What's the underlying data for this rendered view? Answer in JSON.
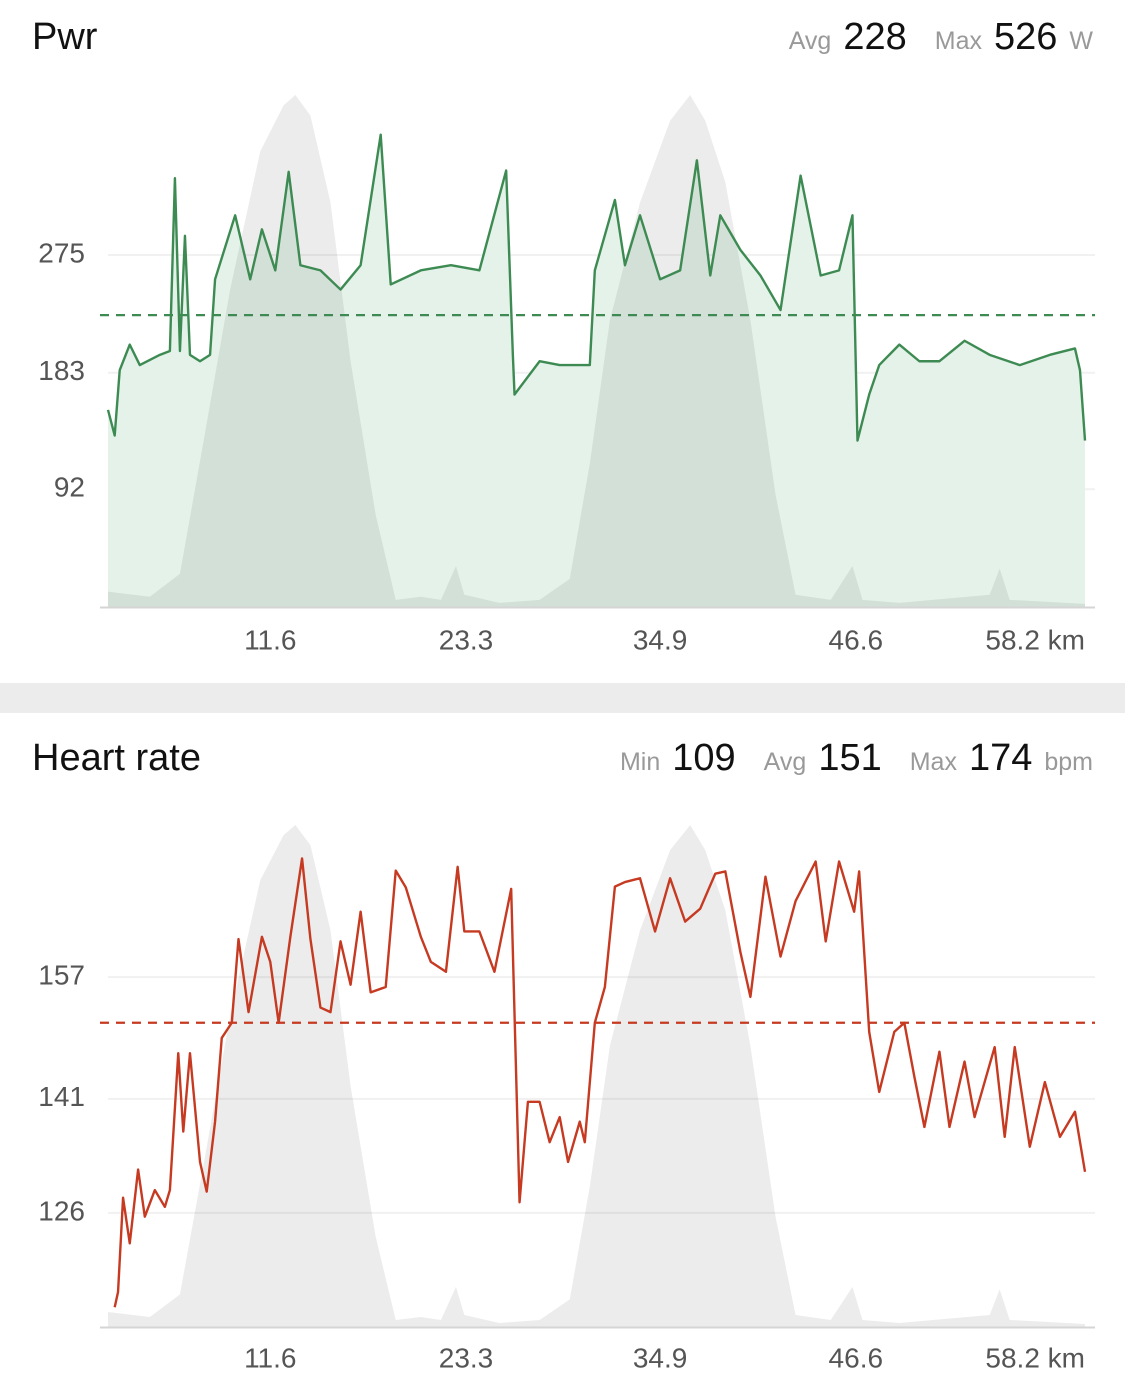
{
  "chart_data": [
    {
      "type": "line",
      "title": "Pwr",
      "avg": {
        "label": "Avg",
        "value": 228
      },
      "max": {
        "label": "Max",
        "value": 526
      },
      "unit": "W",
      "xlim": [
        1.9,
        60.3
      ],
      "xticks": [
        11.6,
        23.3,
        34.9,
        46.6,
        {
          "value": 58.2,
          "label": "58.2 km"
        }
      ],
      "ylim": [
        0,
        400
      ],
      "yticks": [
        275,
        183,
        92
      ],
      "y2lim": [
        0,
        100
      ],
      "grid": true,
      "series": [
        {
          "color": "#3d8b52",
          "fill": "#e4f2ea",
          "area": true,
          "x": [
            1.9,
            2.3,
            2.6,
            3.2,
            3.8,
            5.0,
            5.6,
            5.9,
            6.2,
            6.5,
            6.8,
            7.4,
            8.0,
            8.3,
            9.5,
            10.4,
            11.1,
            11.9,
            12.7,
            13.4,
            14.6,
            15.8,
            17.0,
            18.2,
            18.8,
            20.6,
            22.4,
            24.1,
            25.7,
            26.1,
            26.2,
            27.7,
            28.9,
            30.7,
            31.0,
            32.2,
            32.8,
            33.7,
            34.9,
            36.1,
            37.1,
            37.9,
            38.5,
            39.7,
            40.9,
            42.1,
            43.3,
            44.5,
            45.6,
            46.4,
            46.7,
            47.4,
            48.0,
            49.2,
            50.4,
            51.6,
            53.1,
            54.6,
            56.4,
            58.2,
            59.7,
            60.0,
            60.3
          ],
          "values": [
            154,
            134,
            185,
            205,
            189,
            197,
            200,
            335,
            200,
            290,
            197,
            192,
            197,
            256,
            306,
            256,
            295,
            263,
            340,
            267,
            263,
            248,
            267,
            369,
            252,
            263,
            267,
            263,
            341,
            197,
            166,
            192,
            189,
            189,
            263,
            318,
            267,
            306,
            256,
            263,
            349,
            259,
            306,
            279,
            259,
            232,
            337,
            259,
            263,
            306,
            130,
            166,
            189,
            205,
            192,
            192,
            208,
            197,
            189,
            197,
            202,
            185,
            130
          ]
        },
        {
          "fill": "rgba(0,0,0,0.075)",
          "area": true,
          "axis": "y2",
          "x": [
            1.9,
            4.4,
            6.2,
            7.7,
            9.2,
            11.0,
            12.4,
            13.1,
            14.0,
            15.2,
            16.4,
            17.9,
            19.1,
            20.6,
            21.8,
            22.7,
            23.2,
            25.3,
            27.7,
            29.5,
            30.7,
            31.9,
            33.7,
            35.5,
            36.7,
            37.6,
            38.8,
            40.3,
            41.8,
            43.0,
            45.1,
            46.4,
            47.0,
            49.2,
            54.6,
            55.2,
            55.8,
            60.3
          ],
          "values": [
            3,
            2,
            6.5,
            34,
            62,
            89,
            98,
            100,
            96,
            79,
            48,
            18,
            1.4,
            2,
            1.4,
            8,
            2.4,
            0.8,
            1.4,
            5.5,
            28,
            56,
            79,
            95,
            100,
            95,
            83,
            56,
            22,
            2.4,
            1.4,
            8,
            1.4,
            0.8,
            2.4,
            7.5,
            1.4,
            0.6
          ]
        }
      ]
    },
    {
      "type": "line",
      "title": "Heart rate",
      "min": {
        "label": "Min",
        "value": 109
      },
      "avg": {
        "label": "Avg",
        "value": 151
      },
      "max": {
        "label": "Max",
        "value": 174
      },
      "unit": "bpm",
      "xlim": [
        1.9,
        60.3
      ],
      "xticks": [
        11.6,
        23.3,
        34.9,
        46.6,
        {
          "value": 58.2,
          "label": "58.2 km"
        }
      ],
      "ylim": [
        111,
        177
      ],
      "yticks": [
        157,
        141,
        126
      ],
      "y2lim": [
        0,
        100
      ],
      "grid": true,
      "series": [
        {
          "color": "#c63a22",
          "x": [
            2.3,
            2.5,
            2.8,
            3.2,
            3.7,
            4.1,
            4.7,
            5.3,
            5.6,
            6.1,
            6.4,
            6.8,
            7.4,
            7.8,
            8.3,
            8.7,
            9.3,
            9.7,
            10.3,
            11.1,
            11.6,
            12.1,
            12.8,
            13.5,
            14.0,
            14.6,
            15.2,
            15.8,
            16.4,
            17.0,
            17.6,
            18.5,
            19.1,
            19.7,
            20.6,
            21.2,
            22.1,
            22.8,
            23.2,
            24.1,
            25.0,
            26.0,
            26.5,
            27.0,
            27.7,
            28.3,
            28.9,
            29.4,
            30.1,
            30.4,
            31.0,
            31.6,
            32.2,
            32.8,
            33.7,
            34.6,
            35.5,
            36.4,
            37.3,
            38.2,
            38.8,
            39.7,
            40.3,
            41.2,
            42.1,
            43.0,
            44.2,
            44.8,
            45.6,
            46.5,
            46.8,
            47.4,
            48.0,
            48.9,
            49.5,
            50.1,
            50.7,
            51.6,
            52.2,
            53.1,
            53.7,
            54.9,
            55.5,
            56.1,
            57.0,
            57.9,
            58.8,
            59.7,
            60.3
          ],
          "values": [
            113.6,
            115.6,
            128,
            122,
            131.7,
            125.5,
            129,
            126.8,
            129,
            147,
            136.7,
            147,
            132.7,
            128.8,
            138,
            149,
            151,
            162,
            152.4,
            162.3,
            159,
            151,
            162.3,
            172.6,
            162,
            153,
            152.4,
            161.7,
            156,
            165.6,
            155,
            155.7,
            171,
            168.8,
            162.3,
            159,
            157.7,
            171.5,
            163,
            163,
            157.7,
            168.6,
            127.4,
            140.6,
            140.6,
            135.3,
            138.6,
            132.7,
            138,
            135.3,
            151,
            155.7,
            168.9,
            169.5,
            170,
            163,
            170,
            164.3,
            166,
            170.6,
            170.9,
            160.3,
            154.4,
            170.2,
            159.7,
            167,
            172.2,
            161.7,
            172.2,
            165.6,
            170.9,
            149.8,
            141.9,
            149.8,
            151,
            143.9,
            137.3,
            147.2,
            137.3,
            145.9,
            138.6,
            147.8,
            136,
            147.8,
            134.7,
            143.2,
            136,
            139.3,
            131.4
          ]
        },
        {
          "fill": "rgba(0,0,0,0.075)",
          "area": true,
          "axis": "y2",
          "x": [
            1.9,
            4.4,
            6.2,
            7.7,
            9.2,
            11.0,
            12.4,
            13.1,
            14.0,
            15.2,
            16.4,
            17.9,
            19.1,
            20.6,
            21.8,
            22.7,
            23.2,
            25.3,
            27.7,
            29.5,
            30.7,
            31.9,
            33.7,
            35.5,
            36.7,
            37.6,
            38.8,
            40.3,
            41.8,
            43.0,
            45.1,
            46.4,
            47.0,
            49.2,
            54.6,
            55.2,
            55.8,
            60.3
          ],
          "values": [
            3,
            2,
            6.5,
            34,
            62,
            89,
            98,
            100,
            96,
            79,
            48,
            18,
            1.4,
            2,
            1.4,
            8,
            2.4,
            0.8,
            1.4,
            5.5,
            28,
            56,
            79,
            95,
            100,
            95,
            83,
            56,
            22,
            2.4,
            1.4,
            8,
            1.4,
            0.8,
            2.4,
            7.5,
            1.4,
            0.6
          ]
        }
      ]
    }
  ]
}
